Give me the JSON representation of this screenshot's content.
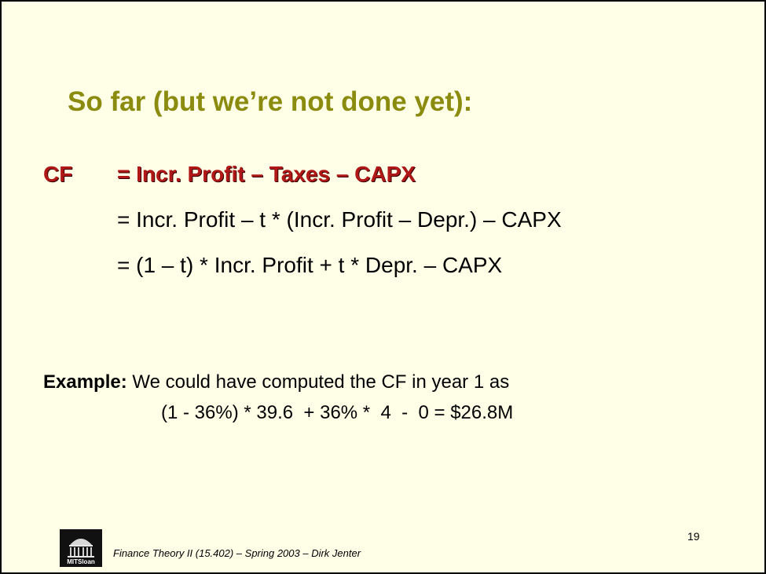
{
  "slide": {
    "title": "So far (but we’re not done yet):",
    "cf_label": "CF",
    "equations": [
      "= Incr. Profit – Taxes – CAPX",
      "= Incr. Profit – t * (Incr. Profit – Depr.) – CAPX",
      "= (1 – t) * Incr. Profit + t * Depr. – CAPX"
    ],
    "example_label": "Example:",
    "example_text": " We could have computed the CF in year 1 as",
    "example_calc": "(1 - 36%) * 39.6  + 36% *  4  -  0 = $26.8M",
    "page_number": "19",
    "footer": "Finance Theory II (15.402) – Spring 2003 – Dirk Jenter",
    "logo_text": "MITSloan",
    "colors": {
      "title": "#8b8b0f",
      "highlight": "#b01818",
      "background": "#ffffe8"
    }
  }
}
